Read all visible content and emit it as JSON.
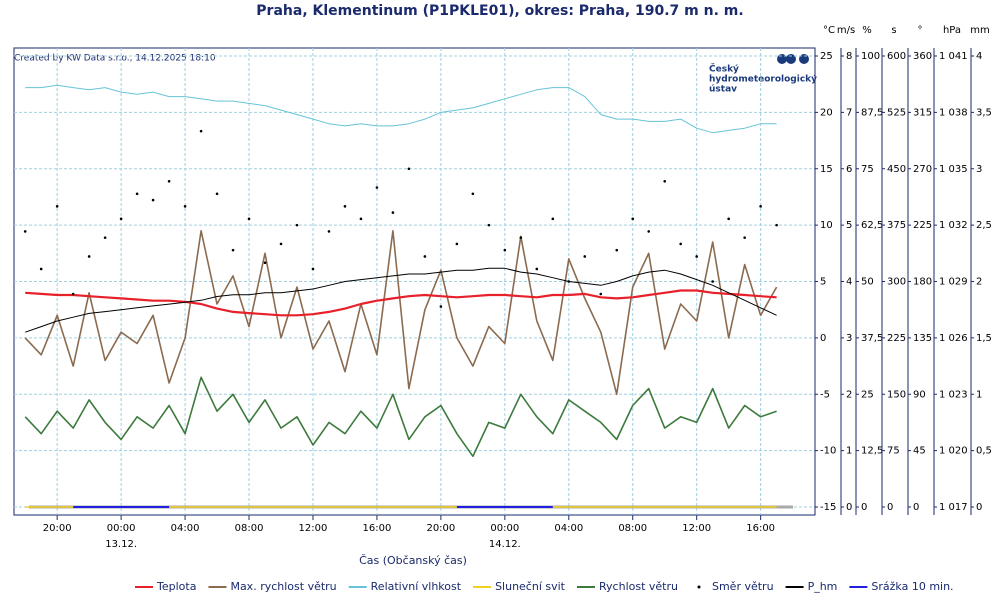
{
  "chart_data": {
    "type": "line",
    "title": "Praha, Klementinum (P1PKLE01), okres: Praha, 190.7 m n. m.",
    "credit": "Created by KW Data s.r.o., 14.12.2025 18:10",
    "logo": [
      "Český",
      "hydrometeorologický",
      "ústav"
    ],
    "xlabel": "Čas (Občanský čas)",
    "grid": true,
    "xlim": [
      17.3,
      67.4
    ],
    "xticks": [
      {
        "value": 20,
        "label": "20:00"
      },
      {
        "value": 24,
        "label": "00:00"
      },
      {
        "value": 28,
        "label": "04:00"
      },
      {
        "value": 32,
        "label": "08:00"
      },
      {
        "value": 36,
        "label": "12:00"
      },
      {
        "value": 40,
        "label": "16:00"
      },
      {
        "value": 44,
        "label": "20:00"
      },
      {
        "value": 48,
        "label": "00:00"
      },
      {
        "value": 52,
        "label": "04:00"
      },
      {
        "value": 56,
        "label": "08:00"
      },
      {
        "value": 60,
        "label": "12:00"
      },
      {
        "value": 64,
        "label": "16:00"
      }
    ],
    "xdates": [
      {
        "value": 24,
        "label": "13.12."
      },
      {
        "value": 48,
        "label": "14.12."
      }
    ],
    "axes": [
      {
        "label": "°C",
        "color": "#e03030",
        "ylim": [
          -15,
          25
        ],
        "yticks": [
          -15,
          -10,
          -5,
          0,
          5,
          10,
          15,
          20,
          25
        ]
      },
      {
        "label": "m/s",
        "color": "#a03030",
        "ylim": [
          0,
          8
        ],
        "yticks": [
          0,
          1,
          2,
          3,
          4,
          5,
          6,
          7,
          8
        ]
      },
      {
        "label": "%",
        "color": "#4fb3cc",
        "ylim": [
          0,
          100
        ],
        "yticks": [
          0,
          {
            "value": 12.5,
            "label": "12,5"
          },
          25,
          {
            "value": 37.5,
            "label": "37,5"
          },
          50,
          {
            "value": 62.5,
            "label": "62,5"
          },
          75,
          {
            "value": 87.5,
            "label": "87,5"
          },
          100
        ]
      },
      {
        "label": "s",
        "color": "#e0b820",
        "ylim": [
          0,
          600
        ],
        "yticks": [
          0,
          75,
          150,
          225,
          300,
          375,
          450,
          525,
          600
        ]
      },
      {
        "label": "°",
        "color": "#000000",
        "ylim": [
          0,
          360
        ],
        "yticks": [
          0,
          45,
          90,
          135,
          180,
          225,
          270,
          315,
          360
        ]
      },
      {
        "label": "hPa",
        "color": "#000000",
        "ylim": [
          1017,
          1041
        ],
        "yticks": [
          {
            "value": 1017,
            "label": "1 017"
          },
          {
            "value": 1020,
            "label": "1 020"
          },
          {
            "value": 1023,
            "label": "1 023"
          },
          {
            "value": 1026,
            "label": "1 026"
          },
          {
            "value": 1029,
            "label": "1 029"
          },
          {
            "value": 1032,
            "label": "1 032"
          },
          {
            "value": 1035,
            "label": "1 035"
          },
          {
            "value": 1038,
            "label": "1 038"
          },
          {
            "value": 1041,
            "label": "1 041"
          }
        ]
      },
      {
        "label": "mm",
        "color": "#2a2ad0",
        "ylim": [
          0,
          4
        ],
        "yticks": [
          0,
          {
            "value": 0.5,
            "label": "0,5"
          },
          1,
          {
            "value": 1.5,
            "label": "1,5"
          },
          2,
          {
            "value": 2.5,
            "label": "2,5"
          },
          3,
          {
            "value": 3.5,
            "label": "3,5"
          },
          4
        ]
      }
    ],
    "x": [
      18,
      19,
      20,
      21,
      22,
      23,
      24,
      25,
      26,
      27,
      28,
      29,
      30,
      31,
      32,
      33,
      34,
      35,
      36,
      37,
      38,
      39,
      40,
      41,
      42,
      43,
      44,
      45,
      46,
      47,
      48,
      49,
      50,
      51,
      52,
      53,
      54,
      55,
      56,
      57,
      58,
      59,
      60,
      61,
      62,
      63,
      64,
      65
    ],
    "series": [
      {
        "name": "Teplota",
        "color": "#e8202a",
        "axis": 0,
        "style": "line",
        "width": 2.2,
        "values": [
          4.0,
          3.9,
          3.8,
          3.8,
          3.7,
          3.6,
          3.5,
          3.4,
          3.3,
          3.3,
          3.2,
          3.0,
          2.6,
          2.3,
          2.2,
          2.1,
          2.0,
          2.0,
          2.1,
          2.3,
          2.6,
          3.0,
          3.3,
          3.5,
          3.7,
          3.8,
          3.7,
          3.6,
          3.7,
          3.8,
          3.8,
          3.7,
          3.6,
          3.8,
          3.8,
          3.9,
          3.6,
          3.5,
          3.6,
          3.8,
          4.0,
          4.2,
          4.2,
          4.0,
          3.9,
          3.8,
          3.7,
          3.6
        ]
      },
      {
        "name": "Max. rychlost větru",
        "color": "#8b6b50",
        "axis": 1,
        "style": "line",
        "width": 1.6,
        "values": [
          3.0,
          2.7,
          3.4,
          2.5,
          3.8,
          2.6,
          3.1,
          2.9,
          3.4,
          2.2,
          3.0,
          4.9,
          3.6,
          4.1,
          3.2,
          4.5,
          3.0,
          3.9,
          2.8,
          3.3,
          2.4,
          3.6,
          2.7,
          4.9,
          2.1,
          3.5,
          4.2,
          3.0,
          2.5,
          3.2,
          2.9,
          4.8,
          3.3,
          2.6,
          4.4,
          3.7,
          3.1,
          2.0,
          3.9,
          4.5,
          2.8,
          3.6,
          3.3,
          4.7,
          3.0,
          4.3,
          3.4,
          3.9
        ]
      },
      {
        "name": "Relativní vlhkost",
        "color": "#66c4d8",
        "axis": 2,
        "style": "line",
        "width": 1,
        "values": [
          93,
          93,
          93.5,
          93,
          92.5,
          93,
          92,
          91.5,
          92,
          91,
          91,
          90.5,
          90,
          90,
          89.5,
          89,
          88,
          87,
          86,
          85,
          84.5,
          85,
          84.5,
          84.5,
          85,
          86,
          87.5,
          88,
          88.5,
          89.5,
          90.5,
          91.5,
          92.5,
          93,
          93,
          91,
          87,
          86,
          86,
          85.5,
          85.5,
          86,
          84,
          83,
          83.5,
          84,
          85,
          85
        ]
      },
      {
        "name": "Sluneční svit",
        "color": "#f0d020",
        "axis": 3,
        "style": "line",
        "width": 1.5,
        "values": [
          0,
          0,
          0,
          0,
          0,
          0,
          0,
          0,
          0,
          0,
          0,
          0,
          0,
          0,
          0,
          0,
          0,
          0,
          0,
          0,
          0,
          0,
          0,
          0,
          0,
          0,
          0,
          0,
          0,
          0,
          0,
          0,
          0,
          0,
          0,
          0,
          0,
          0,
          0,
          0,
          0,
          0,
          0,
          0,
          0,
          0,
          0,
          0
        ]
      },
      {
        "name": "Rychlost větru",
        "color": "#3d7a3d",
        "axis": 1,
        "style": "line",
        "width": 1.6,
        "values": [
          1.6,
          1.3,
          1.7,
          1.4,
          1.9,
          1.5,
          1.2,
          1.6,
          1.4,
          1.8,
          1.3,
          2.3,
          1.7,
          2.0,
          1.5,
          1.9,
          1.4,
          1.6,
          1.1,
          1.5,
          1.3,
          1.7,
          1.4,
          2.0,
          1.2,
          1.6,
          1.8,
          1.3,
          0.9,
          1.5,
          1.4,
          2.0,
          1.6,
          1.3,
          1.9,
          1.7,
          1.5,
          1.2,
          1.8,
          2.1,
          1.4,
          1.6,
          1.5,
          2.1,
          1.4,
          1.8,
          1.6,
          1.7
        ]
      },
      {
        "name": "Směr větru",
        "color": "#000000",
        "axis": 4,
        "style": "dots",
        "values": [
          220,
          190,
          240,
          170,
          200,
          215,
          230,
          250,
          245,
          260,
          240,
          300,
          250,
          205,
          230,
          195,
          210,
          225,
          190,
          220,
          240,
          230,
          255,
          235,
          270,
          200,
          160,
          210,
          250,
          225,
          205,
          215,
          190,
          230,
          180,
          200,
          170,
          205,
          230,
          220,
          260,
          210,
          200,
          180,
          230,
          215,
          240,
          225
        ]
      },
      {
        "name": "P_hm",
        "color": "#000000",
        "axis": 5,
        "style": "line",
        "width": 1,
        "values": [
          1026.3,
          1026.6,
          1026.9,
          1027.1,
          1027.3,
          1027.4,
          1027.5,
          1027.6,
          1027.7,
          1027.8,
          1027.9,
          1028.0,
          1028.2,
          1028.3,
          1028.3,
          1028.4,
          1028.4,
          1028.5,
          1028.6,
          1028.8,
          1029.0,
          1029.1,
          1029.2,
          1029.3,
          1029.4,
          1029.4,
          1029.5,
          1029.6,
          1029.6,
          1029.7,
          1029.7,
          1029.5,
          1029.4,
          1029.2,
          1029.0,
          1028.9,
          1028.8,
          1029.0,
          1029.3,
          1029.5,
          1029.6,
          1029.4,
          1029.1,
          1028.8,
          1028.4,
          1028.0,
          1027.6,
          1027.2
        ]
      },
      {
        "name": "Srážka 10 min.",
        "color": "#2020e0",
        "axis": 6,
        "style": "line",
        "width": 2,
        "values": [
          null,
          null,
          null,
          0,
          0,
          0,
          0,
          0,
          0,
          0,
          null,
          null,
          null,
          null,
          null,
          null,
          null,
          null,
          null,
          null,
          null,
          null,
          null,
          null,
          null,
          null,
          null,
          0,
          0,
          0,
          0,
          0,
          0,
          0,
          null,
          null,
          null,
          null,
          null,
          null,
          null,
          null,
          null,
          null,
          null,
          null,
          null,
          null
        ]
      }
    ]
  }
}
